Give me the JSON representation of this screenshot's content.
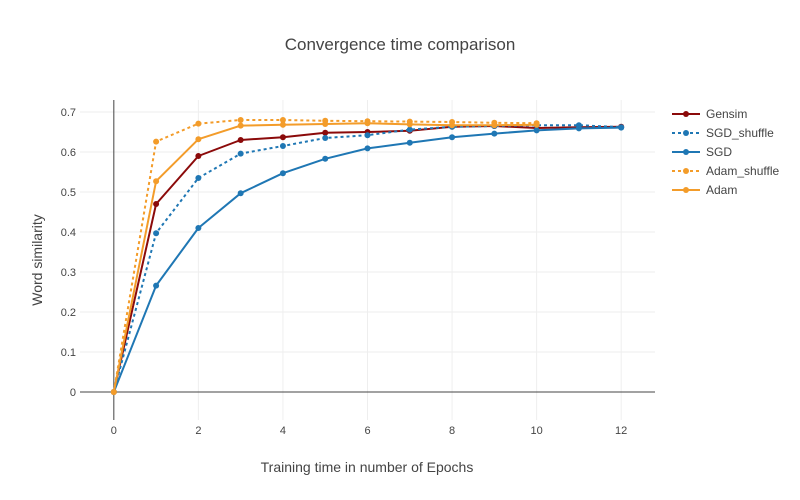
{
  "chart_data": {
    "type": "line",
    "title": "Convergence time comparison",
    "xlabel": "Training time in number of Epochs",
    "ylabel": "Word similarity",
    "xlim": [
      -0.8,
      12.8
    ],
    "ylim": [
      -0.07,
      0.73
    ],
    "xticks": [
      0,
      2,
      4,
      6,
      8,
      10,
      12
    ],
    "yticks": [
      0,
      0.1,
      0.2,
      0.3,
      0.4,
      0.5,
      0.6,
      0.7
    ],
    "grid": true,
    "legend_position": "top-right",
    "series": [
      {
        "name": "Gensim",
        "color": "#8b0a0a",
        "dash": "solid",
        "x": [
          0,
          1,
          2,
          3,
          4,
          5,
          6,
          7,
          8,
          9,
          10,
          11,
          12
        ],
        "y": [
          0,
          0.47,
          0.59,
          0.63,
          0.637,
          0.648,
          0.65,
          0.653,
          0.663,
          0.665,
          0.66,
          0.662,
          0.663
        ]
      },
      {
        "name": "SGD_shuffle",
        "color": "#1f77b4",
        "dash": "dot",
        "x": [
          0,
          1,
          2,
          3,
          4,
          5,
          6,
          7,
          8,
          9,
          10,
          11,
          12
        ],
        "y": [
          0,
          0.397,
          0.535,
          0.596,
          0.615,
          0.635,
          0.642,
          0.656,
          0.663,
          0.665,
          0.667,
          0.667,
          0.662
        ]
      },
      {
        "name": "SGD",
        "color": "#1f77b4",
        "dash": "solid",
        "x": [
          0,
          1,
          2,
          3,
          4,
          5,
          6,
          7,
          8,
          9,
          10,
          11,
          12
        ],
        "y": [
          0,
          0.266,
          0.41,
          0.497,
          0.547,
          0.583,
          0.609,
          0.623,
          0.637,
          0.646,
          0.654,
          0.659,
          0.661
        ]
      },
      {
        "name": "Adam_shuffle",
        "color": "#f39c2a",
        "dash": "dot",
        "x": [
          0,
          1,
          2,
          3,
          4,
          5,
          6,
          7,
          8,
          9,
          10
        ],
        "y": [
          0,
          0.626,
          0.671,
          0.68,
          0.68,
          0.678,
          0.677,
          0.676,
          0.675,
          0.673,
          0.672
        ]
      },
      {
        "name": "Adam",
        "color": "#f39c2a",
        "dash": "solid",
        "x": [
          0,
          1,
          2,
          3,
          4,
          5,
          6,
          7,
          8,
          9,
          10
        ],
        "y": [
          0,
          0.527,
          0.632,
          0.666,
          0.668,
          0.67,
          0.672,
          0.669,
          0.667,
          0.667,
          0.668
        ]
      }
    ]
  }
}
